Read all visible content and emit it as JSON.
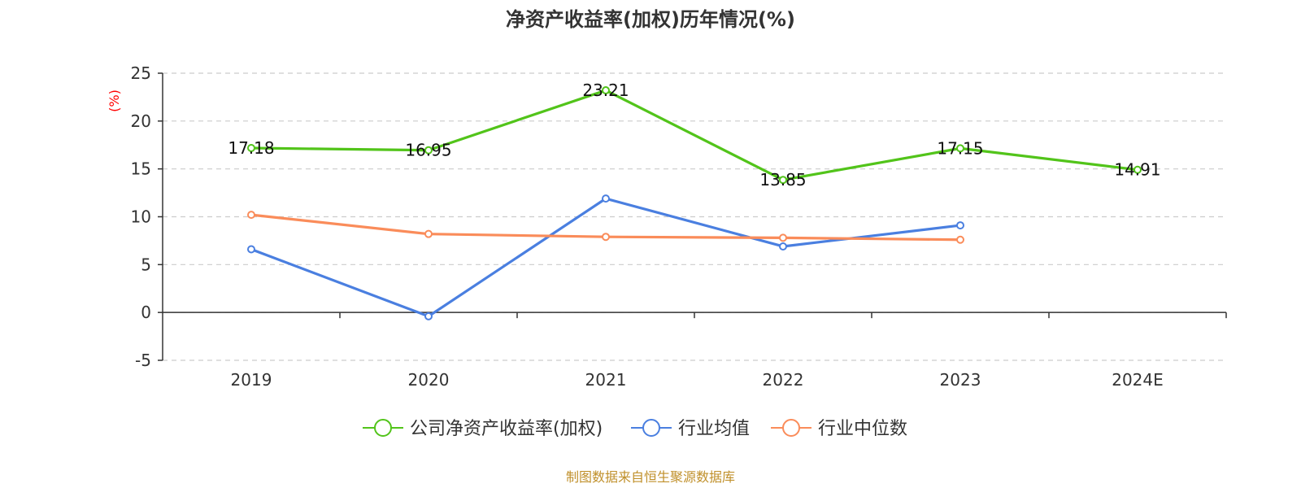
{
  "chart_data": {
    "type": "line",
    "title": "净资产收益率(加权)历年情况(%)",
    "ylabel": "(%)",
    "categories": [
      "2019",
      "2020",
      "2021",
      "2022",
      "2023",
      "2024E"
    ],
    "yticks": [
      "25",
      "20",
      "15",
      "10",
      "5",
      "0",
      "-5"
    ],
    "ylim": [
      -5,
      25
    ],
    "grid": true,
    "legend_position": "bottom",
    "series": [
      {
        "name": "公司净资产收益率(加权)",
        "color": "#52c41a",
        "values": [
          17.18,
          16.95,
          23.21,
          13.85,
          17.15,
          14.91
        ],
        "labels": [
          "17.18",
          "16.95",
          "23.21",
          "13.85",
          "17.15",
          "14.91"
        ]
      },
      {
        "name": "行业均值",
        "color": "#4a7fe0",
        "values": [
          6.6,
          -0.4,
          11.9,
          6.9,
          9.1,
          null
        ]
      },
      {
        "name": "行业中位数",
        "color": "#fa8c5a",
        "values": [
          10.2,
          8.2,
          7.9,
          7.8,
          7.6,
          null
        ]
      }
    ],
    "ylabel_color": "#ff0000",
    "source": "制图数据来自恒生聚源数据库",
    "source_color": "#c0902b"
  }
}
